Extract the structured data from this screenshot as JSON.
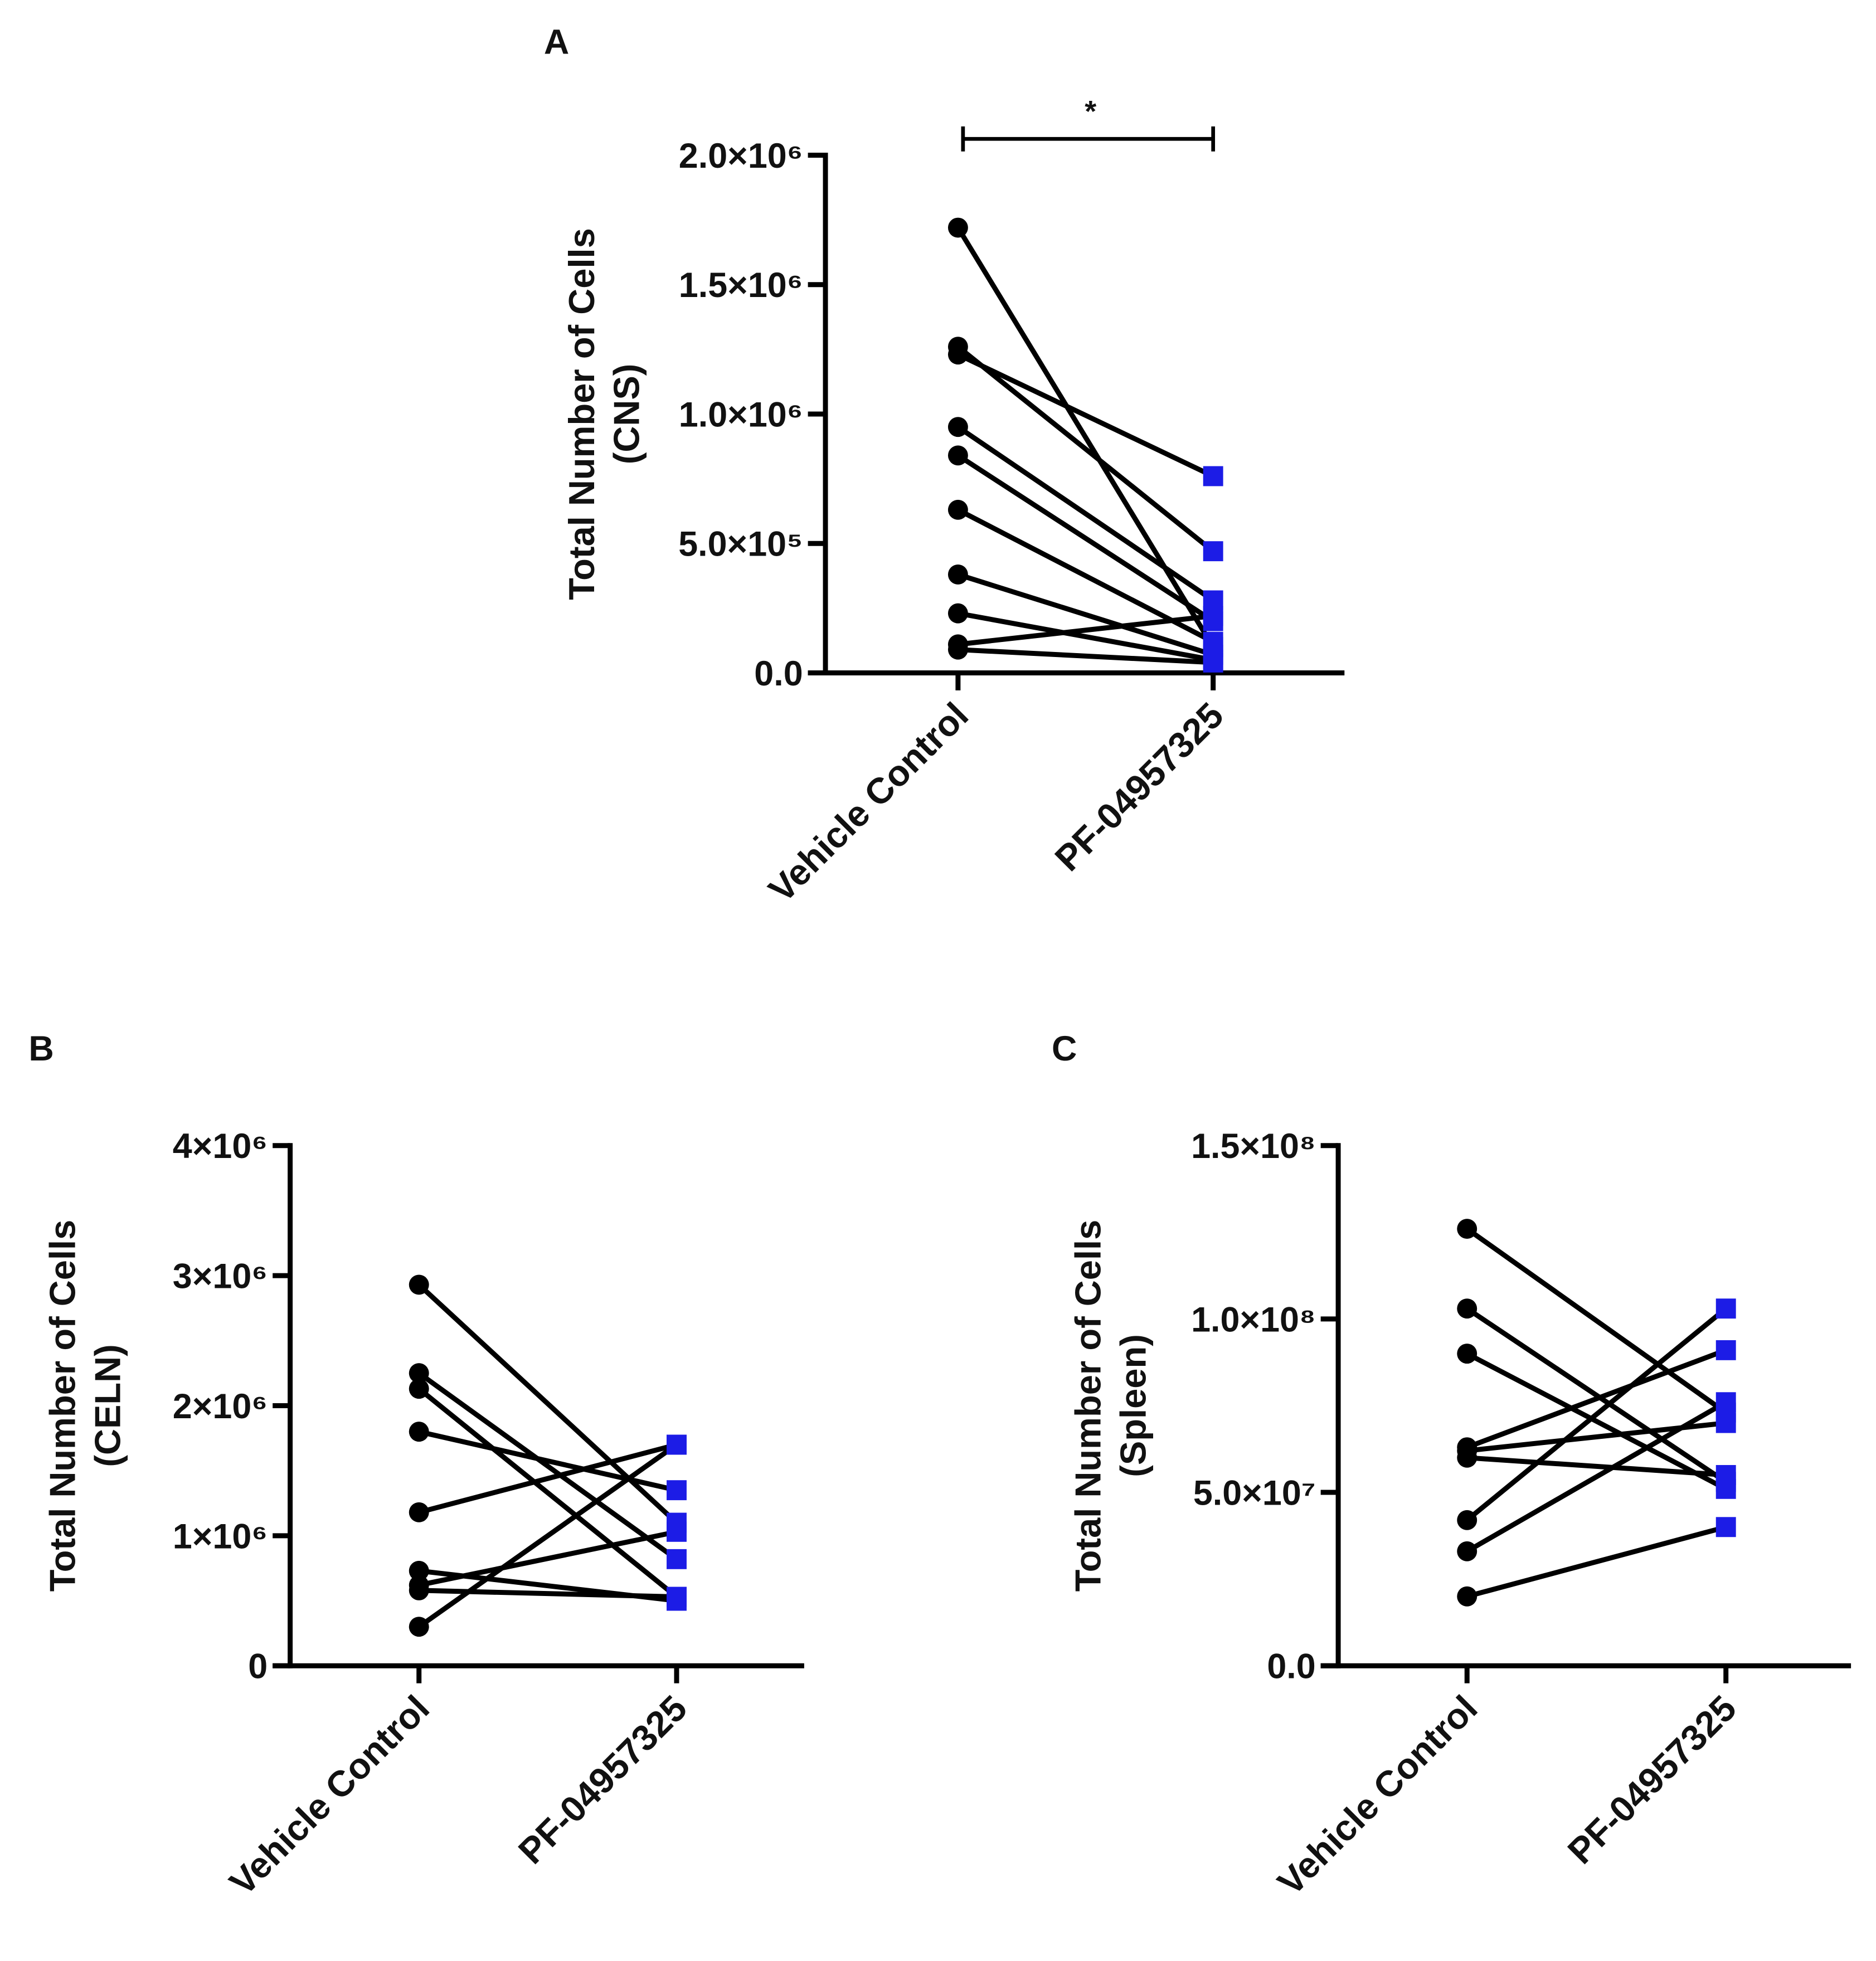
{
  "chart_data": [
    {
      "type": "paired",
      "panel": "A",
      "ylabel": [
        "Total Number of Cells",
        "(CNS)"
      ],
      "categories": [
        "Vehicle Control",
        "PF-04957325"
      ],
      "marker_colors": [
        "#000000",
        "#1c1ce6"
      ],
      "line_color": "#000000",
      "ylim": [
        0,
        2000000
      ],
      "yticks": [
        {
          "value": 0,
          "label": "0.0"
        },
        {
          "value": 500000,
          "label": "5.0×10⁵"
        },
        {
          "value": 1000000,
          "label": "1.0×10⁶"
        },
        {
          "value": 1500000,
          "label": "1.5×10⁶"
        },
        {
          "value": 2000000,
          "label": "2.0×10⁶"
        }
      ],
      "significance": "*",
      "series": [
        {
          "values": [
            1720000,
            100000
          ]
        },
        {
          "values": [
            1260000,
            470000
          ]
        },
        {
          "values": [
            1230000,
            760000
          ]
        },
        {
          "values": [
            950000,
            280000
          ]
        },
        {
          "values": [
            840000,
            200000
          ]
        },
        {
          "values": [
            630000,
            120000
          ]
        },
        {
          "values": [
            380000,
            70000
          ]
        },
        {
          "values": [
            230000,
            50000
          ]
        },
        {
          "values": [
            110000,
            220000
          ]
        },
        {
          "values": [
            90000,
            40000
          ]
        }
      ]
    },
    {
      "type": "paired",
      "panel": "B",
      "ylabel": [
        "Total Number of Cells",
        "(CELN)"
      ],
      "categories": [
        "Vehicle Control",
        "PF-04957325"
      ],
      "marker_colors": [
        "#000000",
        "#1c1ce6"
      ],
      "line_color": "#000000",
      "ylim": [
        0,
        4000000
      ],
      "yticks": [
        0,
        {
          "value": 1000000,
          "label": "1×10⁶"
        },
        {
          "value": 2000000,
          "label": "2×10⁶"
        },
        {
          "value": 3000000,
          "label": "3×10⁶"
        },
        {
          "value": 4000000,
          "label": "4×10⁶"
        }
      ],
      "series": [
        {
          "values": [
            2930000,
            1100000
          ]
        },
        {
          "values": [
            2250000,
            820000
          ]
        },
        {
          "values": [
            2130000,
            530000
          ]
        },
        {
          "values": [
            1800000,
            1350000
          ]
        },
        {
          "values": [
            1180000,
            1700000
          ]
        },
        {
          "values": [
            730000,
            500000
          ]
        },
        {
          "values": [
            620000,
            1030000
          ]
        },
        {
          "values": [
            580000,
            530000
          ]
        },
        {
          "values": [
            300000,
            1700000
          ]
        }
      ]
    },
    {
      "type": "paired",
      "panel": "C",
      "ylabel": [
        "Total Number of Cells",
        "(Spleen)"
      ],
      "categories": [
        "Vehicle Control",
        "PF-04957325"
      ],
      "marker_colors": [
        "#000000",
        "#1c1ce6"
      ],
      "line_color": "#000000",
      "ylim": [
        0,
        150000000
      ],
      "yticks": [
        {
          "value": 0,
          "label": "0.0"
        },
        {
          "value": 50000000,
          "label": "5.0×10⁷"
        },
        {
          "value": 100000000,
          "label": "1.0×10⁸"
        },
        {
          "value": 150000000,
          "label": "1.5×10⁸"
        }
      ],
      "series": [
        {
          "values": [
            126000000,
            73000000
          ]
        },
        {
          "values": [
            103000000,
            53000000
          ]
        },
        {
          "values": [
            90000000,
            51000000
          ]
        },
        {
          "values": [
            63000000,
            91000000
          ]
        },
        {
          "values": [
            62000000,
            70000000
          ]
        },
        {
          "values": [
            60000000,
            55000000
          ]
        },
        {
          "values": [
            42000000,
            103000000
          ]
        },
        {
          "values": [
            33000000,
            76000000
          ]
        },
        {
          "values": [
            20000000,
            40000000
          ]
        }
      ]
    }
  ]
}
